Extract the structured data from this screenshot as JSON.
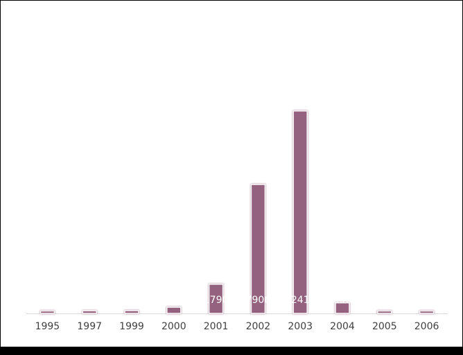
{
  "chart_data": {
    "type": "bar",
    "categories": [
      "1995",
      "1997",
      "1999",
      "2000",
      "2001",
      "2002",
      "2003",
      "2004",
      "2005",
      "2006"
    ],
    "values": [
      150,
      160,
      170,
      380,
      1790,
      7906,
      12416,
      650,
      150,
      150
    ],
    "color": "#94627f"
  }
}
